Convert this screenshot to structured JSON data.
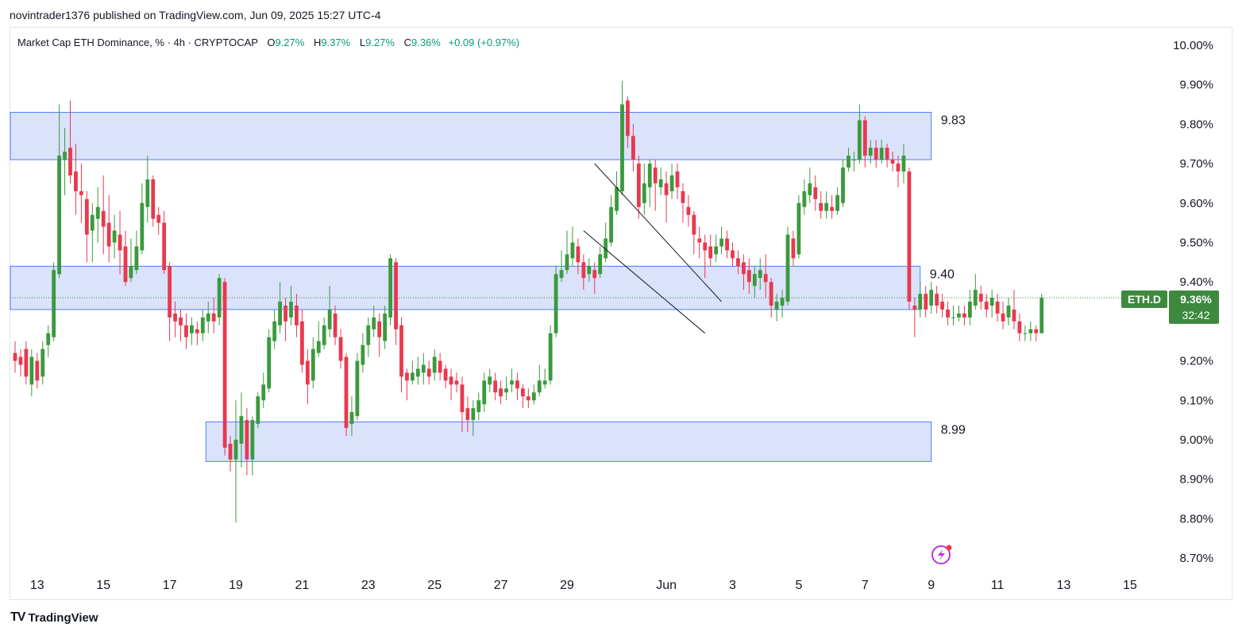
{
  "header": {
    "published": "novintrader1376 published on TradingView.com, Jun 09, 2025 15:27 UTC-4"
  },
  "legend": {
    "symbol": "Market Cap ETH Dominance, % · 4h · CRYPTOCAP",
    "o_label": "O",
    "o": "9.27%",
    "h_label": "H",
    "h": "9.37%",
    "l_label": "L",
    "l": "9.27%",
    "c_label": "C",
    "c": "9.36%",
    "change": "+0.09 (+0.97%)"
  },
  "price_tag": {
    "symbol": "ETH.D",
    "price": "9.36%",
    "countdown": "32:42"
  },
  "footer": {
    "brand": "TradingView"
  },
  "colors": {
    "up": "#3a9a3d",
    "down": "#e8394f",
    "zone_fill": "#d6dffc",
    "zone_stroke": "#2962ff",
    "tag_bg": "#3d8a3f"
  },
  "chart_data": {
    "type": "candlestick",
    "timeframe": "4h",
    "ylim": [
      8.65,
      10.05
    ],
    "y_ticks": [
      "10.00%",
      "9.90%",
      "9.80%",
      "9.70%",
      "9.60%",
      "9.50%",
      "9.40%",
      "9.20%",
      "9.10%",
      "9.00%",
      "8.90%",
      "8.80%",
      "8.70%"
    ],
    "y_tick_values": [
      10.0,
      9.9,
      9.8,
      9.7,
      9.6,
      9.5,
      9.4,
      9.2,
      9.1,
      9.0,
      8.9,
      8.8,
      8.7
    ],
    "x_ticks": [
      "13",
      "15",
      "17",
      "19",
      "21",
      "23",
      "25",
      "27",
      "29",
      "Jun",
      "3",
      "5",
      "7",
      "9",
      "11",
      "13",
      "15"
    ],
    "x_tick_index": [
      4,
      16,
      28,
      40,
      52,
      64,
      76,
      88,
      100,
      118,
      130,
      142,
      154,
      166,
      178,
      190,
      202
    ],
    "zones": [
      {
        "label": "9.83",
        "top": 9.83,
        "bottom": 9.71,
        "start": 0,
        "end": 166
      },
      {
        "label": "9.40",
        "top": 9.44,
        "bottom": 9.33,
        "start": 0,
        "end": 164
      },
      {
        "label": "8.99",
        "top": 9.045,
        "bottom": 8.945,
        "start": 35,
        "end": 166
      }
    ],
    "channel": {
      "upper": [
        [
          105,
          9.7
        ],
        [
          128,
          9.35
        ]
      ],
      "lower": [
        [
          103,
          9.53
        ],
        [
          125,
          9.27
        ]
      ]
    },
    "last_price": 9.36,
    "candles": [
      [
        9.22,
        9.2,
        9.25,
        9.17
      ],
      [
        9.21,
        9.19,
        9.23,
        9.16
      ],
      [
        9.23,
        9.16,
        9.25,
        9.14
      ],
      [
        9.14,
        9.21,
        9.23,
        9.11
      ],
      [
        9.2,
        9.15,
        9.22,
        9.13
      ],
      [
        9.16,
        9.23,
        9.25,
        9.14
      ],
      [
        9.24,
        9.27,
        9.29,
        9.21
      ],
      [
        9.26,
        9.43,
        9.45,
        9.25
      ],
      [
        9.42,
        9.72,
        9.85,
        9.41
      ],
      [
        9.71,
        9.73,
        9.79,
        9.62
      ],
      [
        9.74,
        9.67,
        9.86,
        9.65
      ],
      [
        9.68,
        9.63,
        9.75,
        9.57
      ],
      [
        9.63,
        9.62,
        9.7,
        9.55
      ],
      [
        9.61,
        9.52,
        9.63,
        9.45
      ],
      [
        9.53,
        9.57,
        9.6,
        9.45
      ],
      [
        9.56,
        9.59,
        9.64,
        9.5
      ],
      [
        9.58,
        9.54,
        9.67,
        9.47
      ],
      [
        9.55,
        9.49,
        9.62,
        9.45
      ],
      [
        9.5,
        9.53,
        9.57,
        9.46
      ],
      [
        9.52,
        9.48,
        9.58,
        9.42
      ],
      [
        9.49,
        9.4,
        9.53,
        9.39
      ],
      [
        9.41,
        9.44,
        9.51,
        9.4
      ],
      [
        9.43,
        9.49,
        9.53,
        9.42
      ],
      [
        9.48,
        9.6,
        9.65,
        9.47
      ],
      [
        9.59,
        9.66,
        9.72,
        9.55
      ],
      [
        9.66,
        9.56,
        9.67,
        9.54
      ],
      [
        9.57,
        9.55,
        9.59,
        9.52
      ],
      [
        9.55,
        9.43,
        9.58,
        9.42
      ],
      [
        9.44,
        9.31,
        9.45,
        9.25
      ],
      [
        9.32,
        9.3,
        9.35,
        9.26
      ],
      [
        9.31,
        9.29,
        9.33,
        9.25
      ],
      [
        9.29,
        9.26,
        9.32,
        9.23
      ],
      [
        9.27,
        9.29,
        9.31,
        9.24
      ],
      [
        9.28,
        9.27,
        9.3,
        9.24
      ],
      [
        9.27,
        9.31,
        9.33,
        9.25
      ],
      [
        9.3,
        9.32,
        9.35,
        9.27
      ],
      [
        9.32,
        9.3,
        9.36,
        9.27
      ],
      [
        9.31,
        9.41,
        9.42,
        9.29
      ],
      [
        9.4,
        8.98,
        9.41,
        8.96
      ],
      [
        8.99,
        8.95,
        9.01,
        8.92
      ],
      [
        8.95,
        9.0,
        9.1,
        8.79
      ],
      [
        8.99,
        9.06,
        9.12,
        8.93
      ],
      [
        9.05,
        8.95,
        9.08,
        8.91
      ],
      [
        8.95,
        9.05,
        9.06,
        8.91
      ],
      [
        9.04,
        9.11,
        9.12,
        9.03
      ],
      [
        9.1,
        9.14,
        9.17,
        9.08
      ],
      [
        9.13,
        9.26,
        9.28,
        9.12
      ],
      [
        9.25,
        9.3,
        9.33,
        9.23
      ],
      [
        9.29,
        9.35,
        9.4,
        9.27
      ],
      [
        9.34,
        9.3,
        9.36,
        9.25
      ],
      [
        9.31,
        9.35,
        9.39,
        9.29
      ],
      [
        9.34,
        9.29,
        9.37,
        9.26
      ],
      [
        9.3,
        9.19,
        9.33,
        9.17
      ],
      [
        9.2,
        9.14,
        9.23,
        9.09
      ],
      [
        9.15,
        9.23,
        9.26,
        9.13
      ],
      [
        9.22,
        9.25,
        9.3,
        9.21
      ],
      [
        9.24,
        9.29,
        9.31,
        9.23
      ],
      [
        9.28,
        9.33,
        9.39,
        9.26
      ],
      [
        9.32,
        9.26,
        9.34,
        9.24
      ],
      [
        9.26,
        9.2,
        9.28,
        9.18
      ],
      [
        9.21,
        9.03,
        9.22,
        9.01
      ],
      [
        9.04,
        9.07,
        9.11,
        9.01
      ],
      [
        9.06,
        9.2,
        9.22,
        9.05
      ],
      [
        9.19,
        9.24,
        9.27,
        9.17
      ],
      [
        9.24,
        9.29,
        9.31,
        9.21
      ],
      [
        9.28,
        9.31,
        9.34,
        9.26
      ],
      [
        9.3,
        9.26,
        9.32,
        9.21
      ],
      [
        9.25,
        9.32,
        9.34,
        9.23
      ],
      [
        9.31,
        9.46,
        9.47,
        9.29
      ],
      [
        9.45,
        9.28,
        9.46,
        9.24
      ],
      [
        9.29,
        9.16,
        9.31,
        9.12
      ],
      [
        9.17,
        9.15,
        9.18,
        9.1
      ],
      [
        9.15,
        9.17,
        9.2,
        9.14
      ],
      [
        9.16,
        9.18,
        9.21,
        9.14
      ],
      [
        9.17,
        9.19,
        9.22,
        9.14
      ],
      [
        9.18,
        9.16,
        9.2,
        9.14
      ],
      [
        9.17,
        9.21,
        9.23,
        9.15
      ],
      [
        9.2,
        9.17,
        9.22,
        9.15
      ],
      [
        9.18,
        9.15,
        9.19,
        9.13
      ],
      [
        9.16,
        9.14,
        9.18,
        9.1
      ],
      [
        9.15,
        9.14,
        9.17,
        9.12
      ],
      [
        9.14,
        9.07,
        9.16,
        9.02
      ],
      [
        9.08,
        9.05,
        9.11,
        9.02
      ],
      [
        9.05,
        9.08,
        9.1,
        9.01
      ],
      [
        9.07,
        9.1,
        9.12,
        9.05
      ],
      [
        9.09,
        9.15,
        9.17,
        9.07
      ],
      [
        9.14,
        9.16,
        9.18,
        9.12
      ],
      [
        9.15,
        9.12,
        9.17,
        9.1
      ],
      [
        9.13,
        9.11,
        9.15,
        9.09
      ],
      [
        9.12,
        9.13,
        9.16,
        9.1
      ],
      [
        9.14,
        9.15,
        9.18,
        9.12
      ],
      [
        9.15,
        9.13,
        9.17,
        9.1
      ],
      [
        9.13,
        9.11,
        9.14,
        9.08
      ],
      [
        9.11,
        9.1,
        9.13,
        9.08
      ],
      [
        9.1,
        9.12,
        9.14,
        9.09
      ],
      [
        9.12,
        9.15,
        9.19,
        9.11
      ],
      [
        9.14,
        9.15,
        9.18,
        9.13
      ],
      [
        9.15,
        9.27,
        9.29,
        9.14
      ],
      [
        9.27,
        9.42,
        9.44,
        9.26
      ],
      [
        9.41,
        9.43,
        9.48,
        9.4
      ],
      [
        9.43,
        9.47,
        9.53,
        9.42
      ],
      [
        9.46,
        9.5,
        9.54,
        9.44
      ],
      [
        9.49,
        9.45,
        9.51,
        9.42
      ],
      [
        9.45,
        9.41,
        9.47,
        9.38
      ],
      [
        9.42,
        9.44,
        9.46,
        9.4
      ],
      [
        9.43,
        9.41,
        9.45,
        9.37
      ],
      [
        9.42,
        9.47,
        9.49,
        9.41
      ],
      [
        9.46,
        9.51,
        9.55,
        9.45
      ],
      [
        9.5,
        9.59,
        9.62,
        9.49
      ],
      [
        9.58,
        9.64,
        9.68,
        9.57
      ],
      [
        9.63,
        9.85,
        9.91,
        9.62
      ],
      [
        9.86,
        9.77,
        9.87,
        9.74
      ],
      [
        9.77,
        9.71,
        9.8,
        9.68
      ],
      [
        9.7,
        9.59,
        9.72,
        9.56
      ],
      [
        9.6,
        9.65,
        9.7,
        9.57
      ],
      [
        9.64,
        9.7,
        9.71,
        9.59
      ],
      [
        9.69,
        9.65,
        9.71,
        9.58
      ],
      [
        9.64,
        9.66,
        9.69,
        9.62
      ],
      [
        9.65,
        9.62,
        9.68,
        9.55
      ],
      [
        9.63,
        9.67,
        9.7,
        9.61
      ],
      [
        9.68,
        9.64,
        9.7,
        9.61
      ],
      [
        9.63,
        9.6,
        9.65,
        9.55
      ],
      [
        9.59,
        9.57,
        9.62,
        9.54
      ],
      [
        9.57,
        9.52,
        9.58,
        9.47
      ],
      [
        9.51,
        9.5,
        9.54,
        9.46
      ],
      [
        9.5,
        9.48,
        9.52,
        9.41
      ],
      [
        9.49,
        9.46,
        9.52,
        9.44
      ],
      [
        9.47,
        9.49,
        9.52,
        9.45
      ],
      [
        9.49,
        9.51,
        9.54,
        9.47
      ],
      [
        9.51,
        9.48,
        9.53,
        9.46
      ],
      [
        9.48,
        9.46,
        9.5,
        9.44
      ],
      [
        9.46,
        9.44,
        9.48,
        9.42
      ],
      [
        9.45,
        9.42,
        9.47,
        9.38
      ],
      [
        9.43,
        9.4,
        9.46,
        9.37
      ],
      [
        9.39,
        9.42,
        9.44,
        9.36
      ],
      [
        9.41,
        9.43,
        9.46,
        9.38
      ],
      [
        9.42,
        9.4,
        9.47,
        9.36
      ],
      [
        9.4,
        9.34,
        9.41,
        9.31
      ],
      [
        9.33,
        9.35,
        9.37,
        9.3
      ],
      [
        9.34,
        9.36,
        9.38,
        9.31
      ],
      [
        9.35,
        9.52,
        9.54,
        9.34
      ],
      [
        9.51,
        9.46,
        9.53,
        9.44
      ],
      [
        9.47,
        9.6,
        9.62,
        9.46
      ],
      [
        9.59,
        9.63,
        9.66,
        9.57
      ],
      [
        9.62,
        9.65,
        9.69,
        9.6
      ],
      [
        9.64,
        9.61,
        9.67,
        9.58
      ],
      [
        9.6,
        9.58,
        9.63,
        9.56
      ],
      [
        9.58,
        9.6,
        9.63,
        9.56
      ],
      [
        9.59,
        9.58,
        9.62,
        9.56
      ],
      [
        9.58,
        9.62,
        9.64,
        9.57
      ],
      [
        9.6,
        9.69,
        9.71,
        9.59
      ],
      [
        9.69,
        9.72,
        9.74,
        9.68
      ],
      [
        9.71,
        9.71,
        9.73,
        9.68
      ],
      [
        9.71,
        9.81,
        9.85,
        9.7
      ],
      [
        9.81,
        9.72,
        9.82,
        9.69
      ],
      [
        9.72,
        9.74,
        9.76,
        9.7
      ],
      [
        9.74,
        9.71,
        9.76,
        9.69
      ],
      [
        9.71,
        9.74,
        9.76,
        9.7
      ],
      [
        9.74,
        9.71,
        9.75,
        9.69
      ],
      [
        9.71,
        9.7,
        9.73,
        9.68
      ],
      [
        9.7,
        9.68,
        9.72,
        9.64
      ],
      [
        9.68,
        9.72,
        9.75,
        9.65
      ],
      [
        9.68,
        9.35,
        9.69,
        9.33
      ],
      [
        9.34,
        9.33,
        9.36,
        9.26
      ],
      [
        9.33,
        9.37,
        9.4,
        9.31
      ],
      [
        9.37,
        9.33,
        9.39,
        9.31
      ],
      [
        9.34,
        9.38,
        9.4,
        9.32
      ],
      [
        9.37,
        9.34,
        9.39,
        9.32
      ],
      [
        9.35,
        9.33,
        9.37,
        9.31
      ],
      [
        9.33,
        9.31,
        9.35,
        9.29
      ],
      [
        9.31,
        9.31,
        9.34,
        9.29
      ],
      [
        9.31,
        9.32,
        9.34,
        9.3
      ],
      [
        9.32,
        9.31,
        9.34,
        9.29
      ],
      [
        9.31,
        9.35,
        9.38,
        9.29
      ],
      [
        9.34,
        9.38,
        9.42,
        9.33
      ],
      [
        9.37,
        9.35,
        9.39,
        9.33
      ],
      [
        9.35,
        9.33,
        9.37,
        9.31
      ],
      [
        9.34,
        9.36,
        9.38,
        9.31
      ],
      [
        9.35,
        9.32,
        9.37,
        9.3
      ],
      [
        9.32,
        9.3,
        9.35,
        9.28
      ],
      [
        9.31,
        9.34,
        9.36,
        9.29
      ],
      [
        9.33,
        9.3,
        9.38,
        9.28
      ],
      [
        9.3,
        9.27,
        9.32,
        9.25
      ],
      [
        9.27,
        9.27,
        9.29,
        9.25
      ],
      [
        9.27,
        9.28,
        9.3,
        9.25
      ],
      [
        9.28,
        9.27,
        9.29,
        9.25
      ],
      [
        9.27,
        9.36,
        9.37,
        9.27
      ]
    ]
  }
}
